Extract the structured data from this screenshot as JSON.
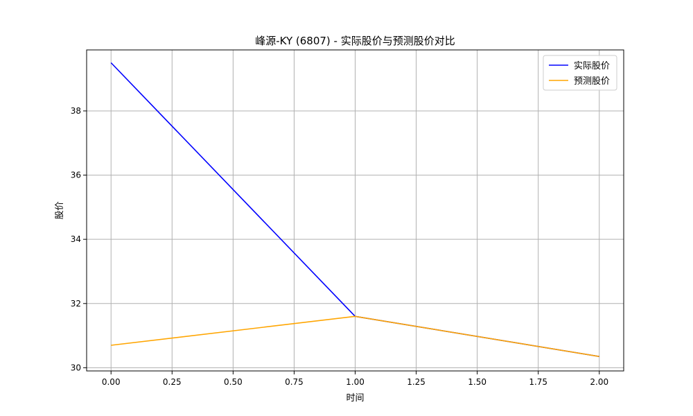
{
  "chart_data": {
    "type": "line",
    "title": "峰源-KY (6807) - 实际股价与预测股价对比",
    "xlabel": "时间",
    "ylabel": "股价",
    "x": [
      0,
      1,
      2
    ],
    "xlim": [
      -0.1,
      2.1
    ],
    "ylim": [
      29.9,
      39.9
    ],
    "xticks": [
      0.0,
      0.25,
      0.5,
      0.75,
      1.0,
      1.25,
      1.5,
      1.75,
      2.0
    ],
    "xtick_labels": [
      "0.00",
      "0.25",
      "0.50",
      "0.75",
      "1.00",
      "1.25",
      "1.50",
      "1.75",
      "2.00"
    ],
    "yticks": [
      30,
      32,
      34,
      36,
      38
    ],
    "ytick_labels": [
      "30",
      "32",
      "34",
      "36",
      "38"
    ],
    "grid": true,
    "legend_position": "top-right",
    "series": [
      {
        "name": "实际股价",
        "color": "#0000ff",
        "values": [
          39.5,
          31.6,
          30.35
        ]
      },
      {
        "name": "预测股价",
        "color": "#ffa500",
        "values": [
          30.7,
          31.6,
          30.35
        ]
      }
    ]
  }
}
